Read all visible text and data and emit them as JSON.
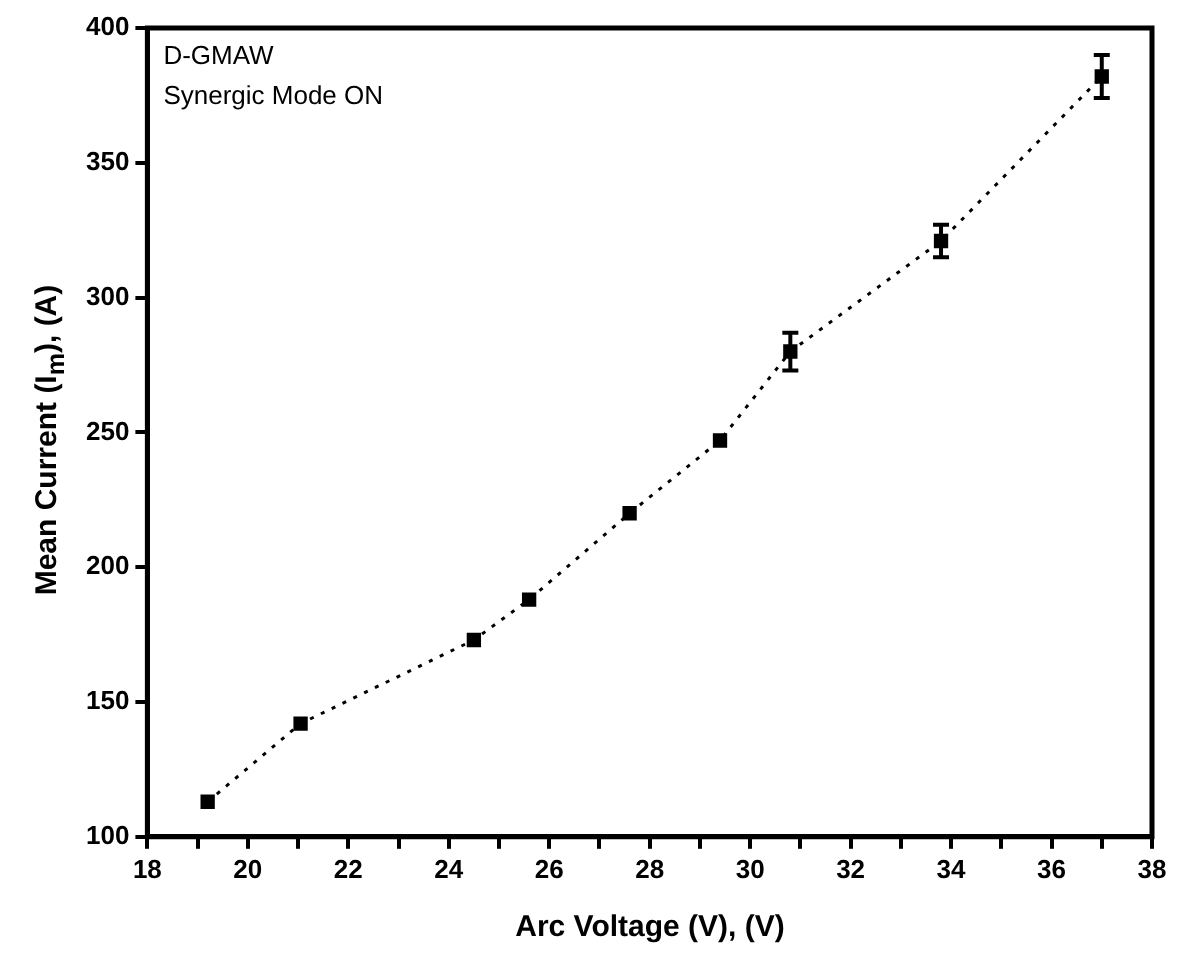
{
  "chart_data": {
    "type": "line",
    "xlabel": "Arc Voltage (V), (V)",
    "ylabel": "Mean Current (I$_{m}$), (A)",
    "annotations": [
      "D-GMAW",
      "Synergic Mode ON"
    ],
    "series": [
      {
        "color": "#000000",
        "x": [
          19.2,
          21.05,
          24.5,
          25.6,
          27.6,
          29.4,
          30.8,
          33.8,
          37
        ],
        "values": [
          113,
          142,
          173,
          188,
          220,
          247,
          280,
          321,
          382
        ],
        "errors": [
          null,
          null,
          null,
          null,
          null,
          null,
          7,
          6,
          8
        ]
      }
    ],
    "xlim": [
      18,
      38
    ],
    "xticks": [
      18,
      {
        "value": 19,
        "label": null
      },
      20,
      {
        "value": 21,
        "label": null
      },
      22,
      {
        "value": 23,
        "label": null
      },
      24,
      {
        "value": 25,
        "label": null
      },
      26,
      {
        "value": 27,
        "label": null
      },
      28,
      {
        "value": 29,
        "label": null
      },
      30,
      {
        "value": 31,
        "label": null
      },
      32,
      {
        "value": 33,
        "label": null
      },
      34,
      {
        "value": 35,
        "label": null
      },
      36,
      {
        "value": 37,
        "label": null
      },
      38
    ],
    "ylim": [
      100,
      400
    ],
    "yticks": [
      100,
      150,
      200,
      250,
      300,
      350,
      400
    ],
    "grid": false,
    "legend": false,
    "marker": "square",
    "line_style": "dotted"
  }
}
